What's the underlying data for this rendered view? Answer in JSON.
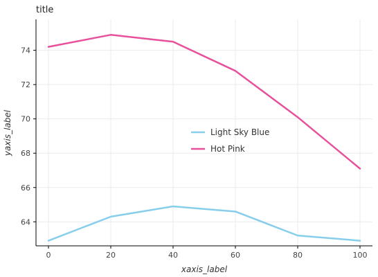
{
  "chart_data": {
    "type": "line",
    "title": "title",
    "xlabel": "xaxis_label",
    "ylabel": "yaxis_label",
    "x": [
      0,
      20,
      40,
      60,
      80,
      100
    ],
    "xlim": [
      -4,
      104
    ],
    "ylim": [
      62.6,
      75.8
    ],
    "xticks": [
      0,
      20,
      40,
      60,
      80,
      100
    ],
    "yticks": [
      64,
      66,
      68,
      70,
      72,
      74
    ],
    "grid": true,
    "legend_position": "center",
    "series": [
      {
        "name": "Light Sky Blue",
        "color": "#87ceeb",
        "values": [
          62.9,
          64.3,
          64.9,
          64.6,
          63.2,
          62.9
        ]
      },
      {
        "name": "Hot Pink",
        "color": "#e8509c",
        "values": [
          74.2,
          74.9,
          74.5,
          72.8,
          70.1,
          67.1
        ]
      }
    ]
  }
}
